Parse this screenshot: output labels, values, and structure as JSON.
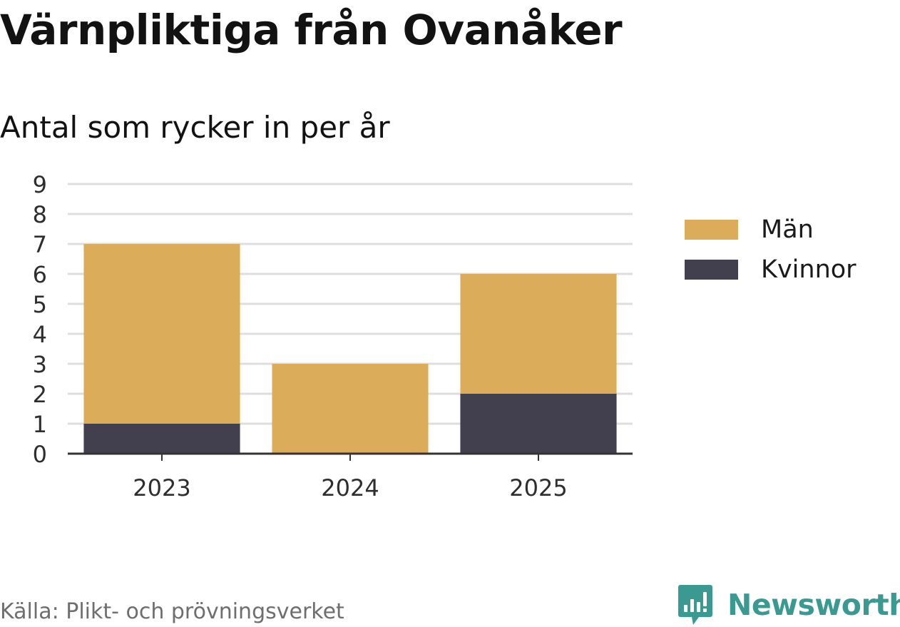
{
  "title": "Värnpliktiga från Ovanåker",
  "subtitle": "Antal som rycker in per år",
  "source": "Källa: Plikt- och prövningsverket",
  "brand": "Newsworthy",
  "colors": {
    "man": "#dbad5b",
    "kvinnor": "#42404e",
    "brand": "#3a9a92",
    "grid": "#dedede",
    "axis": "#333333"
  },
  "chart_data": {
    "type": "bar",
    "stacked": true,
    "categories": [
      "2023",
      "2024",
      "2025"
    ],
    "series": [
      {
        "name": "Kvinnor",
        "values": [
          1,
          0,
          2
        ],
        "color": "#42404e"
      },
      {
        "name": "Män",
        "values": [
          6,
          3,
          4
        ],
        "color": "#dbad5b"
      }
    ],
    "ylim": [
      0,
      9
    ],
    "yticks": [
      0,
      1,
      2,
      3,
      4,
      5,
      6,
      7,
      8,
      9
    ],
    "grid": true,
    "legend_placement": "right",
    "legend": [
      {
        "label": "Män",
        "color": "#dbad5b"
      },
      {
        "label": "Kvinnor",
        "color": "#42404e"
      }
    ]
  }
}
